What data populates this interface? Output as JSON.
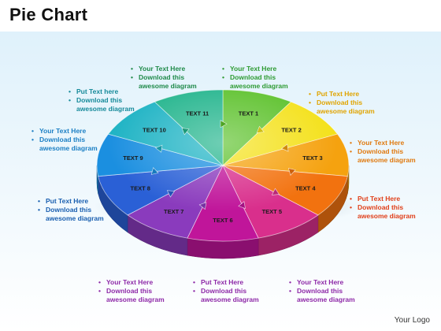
{
  "title": "Pie Chart",
  "footer": {
    "logo_text": "Your Logo"
  },
  "slices": [
    {
      "label": "TEXT 1",
      "color": "#5cc12b"
    },
    {
      "label": "TEXT 2",
      "color": "#f4e11a"
    },
    {
      "label": "TEXT 3",
      "color": "#f5a20f"
    },
    {
      "label": "TEXT 4",
      "color": "#f2720f"
    },
    {
      "label": "TEXT 5",
      "color": "#d92f8c"
    },
    {
      "label": "TEXT 6",
      "color": "#c0159a"
    },
    {
      "label": "TEXT 7",
      "color": "#8a3bbd"
    },
    {
      "label": "TEXT 8",
      "color": "#2a60d6"
    },
    {
      "label": "TEXT 9",
      "color": "#1b8fe0"
    },
    {
      "label": "TEXT 10",
      "color": "#1eb3c4"
    },
    {
      "label": "TEXT 11",
      "color": "#21b48c"
    }
  ],
  "callouts": [
    {
      "line1": "Your Text Here",
      "line2": "Download this",
      "line3": "awesome diagram",
      "color": "#2e9b33"
    },
    {
      "line1": "Put Text Here",
      "line2": "Download this",
      "line3": "awesome diagram",
      "color": "#e0a400"
    },
    {
      "line1": "Your Text Here",
      "line2": "Download this",
      "line3": "awesome diagram",
      "color": "#e07a10"
    },
    {
      "line1": "Put Text Here",
      "line2": "Download this",
      "line3": "awesome diagram",
      "color": "#e0401a"
    },
    {
      "line1": "Your Text Here",
      "line2": "Download this",
      "line3": "awesome diagram",
      "color": "#8e2aa8"
    },
    {
      "line1": "Put Text Here",
      "line2": "Download this",
      "line3": "awesome diagram",
      "color": "#8e2aa8"
    },
    {
      "line1": "Your Text Here",
      "line2": "Download this",
      "line3": "awesome diagram",
      "color": "#8e2aa8"
    },
    {
      "line1": "Put Text Here",
      "line2": "Download this",
      "line3": "awesome diagram",
      "color": "#1a5fb0"
    },
    {
      "line1": "Your Text Here",
      "line2": "Download this",
      "line3": "awesome diagram",
      "color": "#1b7fc4"
    },
    {
      "line1": "Put Text  here",
      "line2": "Download this",
      "line3": "awesome diagram",
      "color": "#168a9a"
    },
    {
      "line1": "Your Text Here",
      "line2": "Download this",
      "line3": "awesome diagram",
      "color": "#1f8a4a"
    }
  ],
  "bullet_char": "•"
}
